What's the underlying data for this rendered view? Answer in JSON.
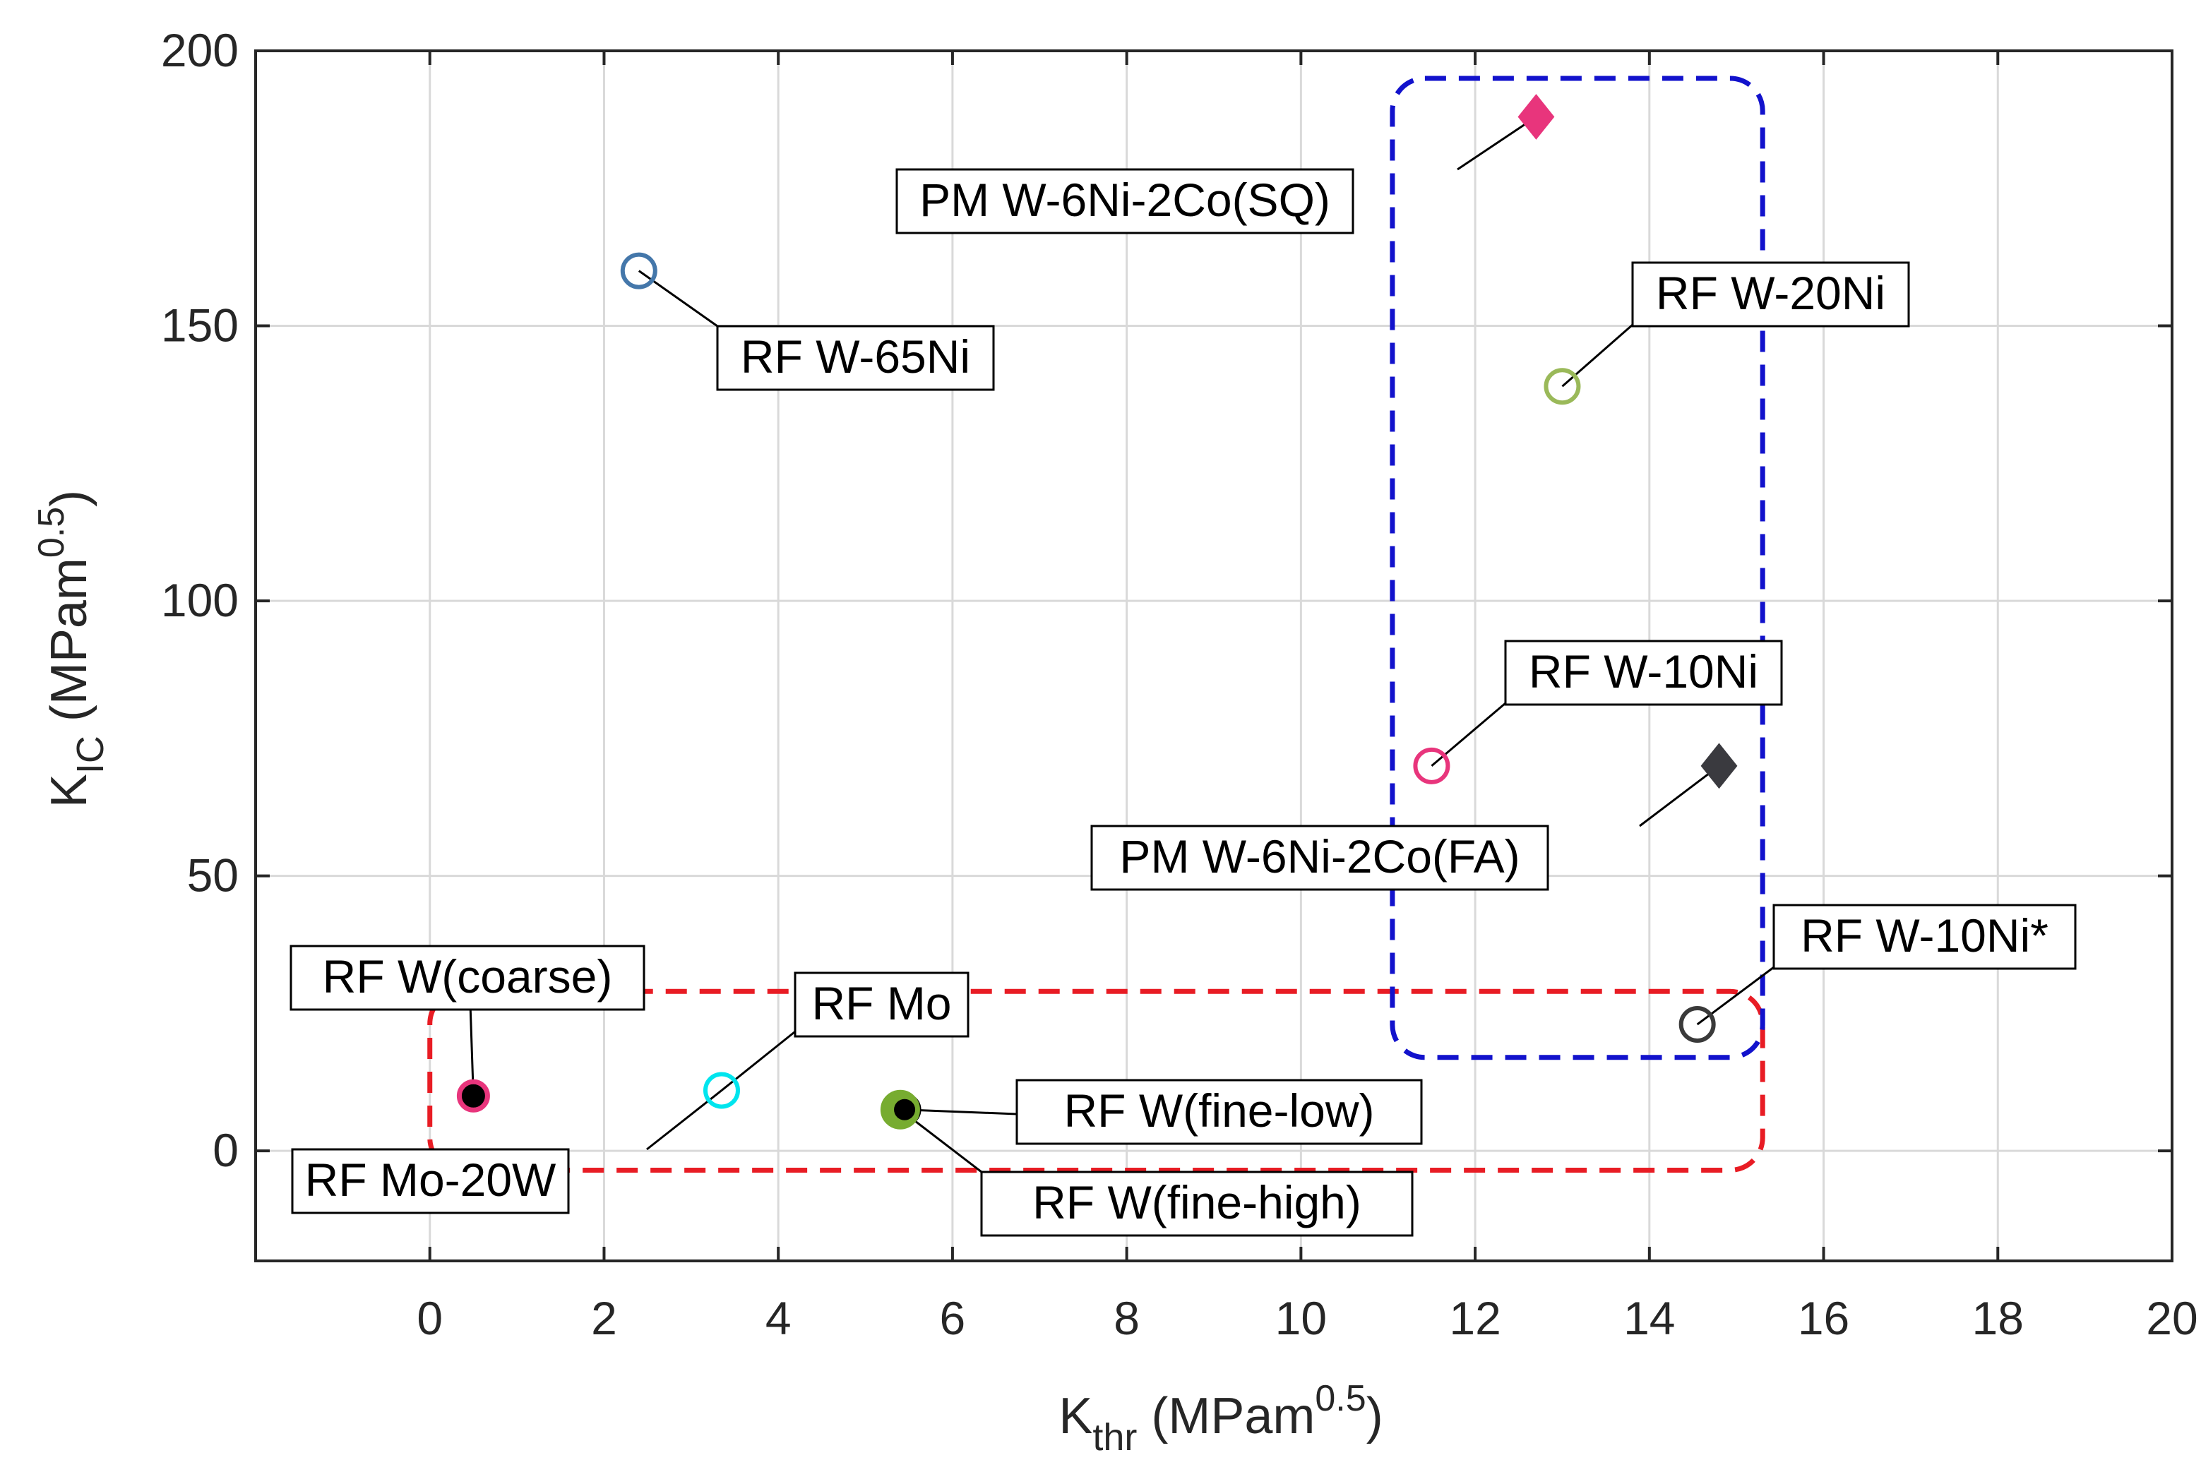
{
  "chart_data": {
    "type": "scatter",
    "xlabel": {
      "base": "K",
      "sub": "thr",
      "unit_open": " (MPam",
      "sup": "0.5",
      "unit_close": ")"
    },
    "ylabel": {
      "base": "K",
      "sub": "IC",
      "unit_open": " (MPam",
      "sup": "0.5",
      "unit_close": ")"
    },
    "xlim": [
      -2,
      20
    ],
    "ylim": [
      -20,
      200
    ],
    "xticks": [
      0,
      2,
      4,
      6,
      8,
      10,
      12,
      14,
      16,
      18,
      20
    ],
    "yticks": [
      0,
      50,
      100,
      150,
      200
    ],
    "grid": true,
    "points": [
      {
        "name": "RF W(coarse)",
        "x": 0.5,
        "y": 10,
        "marker": "circle-filled",
        "edge": "#e8357c",
        "fill": "#000000",
        "label_pos": "above"
      },
      {
        "name": "RF Mo",
        "x": 3.35,
        "y": 11,
        "marker": "circle-open",
        "edge": "#00e5ee",
        "fill": "none",
        "label_pos": "upper-right"
      },
      {
        "name": "RF Mo-20W",
        "x": 3.35,
        "y": 11,
        "marker": "none",
        "edge": "#000000",
        "fill": "none",
        "label_pos": "lower-left"
      },
      {
        "name": "RF W(fine-low)",
        "x": 5.45,
        "y": 7.5,
        "marker": "circle-filled",
        "edge": "#000000",
        "fill": "#000000",
        "label_pos": "right"
      },
      {
        "name": "RF W(fine-high)",
        "x": 5.4,
        "y": 7.5,
        "marker": "circle-filled",
        "edge": "#77ac30",
        "fill": "#77ac30",
        "label_pos": "lower-right"
      },
      {
        "name": "RF W-65Ni",
        "x": 2.4,
        "y": 160,
        "marker": "circle-open",
        "edge": "#4477aa",
        "fill": "none",
        "label_pos": "lower-right"
      },
      {
        "name": "PM W-6Ni-2Co(SQ)",
        "x": 12.7,
        "y": 188,
        "marker": "diamond",
        "edge": "#e8357c",
        "fill": "#e8357c",
        "label_pos": "lower-left"
      },
      {
        "name": "RF W-20Ni",
        "x": 13,
        "y": 139,
        "marker": "circle-open",
        "edge": "#9ab959",
        "fill": "none",
        "label_pos": "upper-right"
      },
      {
        "name": "RF W-10Ni",
        "x": 11.5,
        "y": 70,
        "marker": "circle-open",
        "edge": "#e8357c",
        "fill": "none",
        "label_pos": "upper-right"
      },
      {
        "name": "PM W-6Ni-2Co(FA)",
        "x": 14.8,
        "y": 70,
        "marker": "diamond",
        "edge": "#3a3a3f",
        "fill": "#3a3a3f",
        "label_pos": "lower-left"
      },
      {
        "name": "RF W-10Ni*",
        "x": 14.55,
        "y": 23,
        "marker": "circle-open",
        "edge": "#3a3a3a",
        "fill": "none",
        "label_pos": "upper-right"
      }
    ],
    "regions": [
      {
        "name": "red-group-box",
        "color": "#e81c24",
        "x0": 0,
        "x1": 15.3,
        "y0": -3.5,
        "y1": 29
      },
      {
        "name": "blue-group-box",
        "color": "#1212cc",
        "x0": 11.05,
        "x1": 15.3,
        "y0": 17,
        "y1": 195
      }
    ]
  }
}
